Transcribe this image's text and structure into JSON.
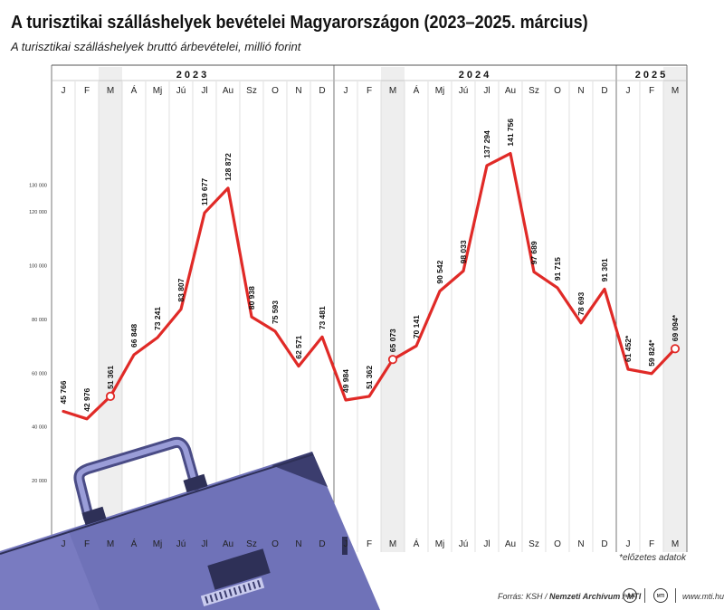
{
  "title": "A turisztikai szálláshelyek bevételei Magyarországon (2023–2025. március)",
  "subtitle": "A turisztikai szálláshelyek bruttó árbevételei, millió forint",
  "footnote": "*előzetes adatok",
  "source": {
    "prefix": "Forrás: ",
    "part1": "KSH",
    "part2": "Nemzeti Archívum",
    "part3": "MTI",
    "logo1": "nava",
    "logo2": "MTI",
    "site": "www.mti.hu"
  },
  "colors": {
    "line": "#e02a27",
    "shade": "#eeeeee",
    "grid": "#d8d8d8",
    "briefcase": "#6f72b8",
    "briefcase_dark": "#3b3d6e"
  },
  "decoration": "briefcase-illustration",
  "chart_data": {
    "type": "line",
    "years": [
      {
        "label": "2023",
        "months": 12
      },
      {
        "label": "2024",
        "months": 12
      },
      {
        "label": "2025",
        "months": 3
      }
    ],
    "categories": [
      "J",
      "F",
      "M",
      "Á",
      "Mj",
      "Jú",
      "Jl",
      "Au",
      "Sz",
      "O",
      "N",
      "D",
      "J",
      "F",
      "M",
      "Á",
      "Mj",
      "Jú",
      "Jl",
      "Au",
      "Sz",
      "O",
      "N",
      "D",
      "J",
      "F",
      "M"
    ],
    "values": [
      45766,
      42976,
      51361,
      66848,
      73241,
      83807,
      119677,
      128872,
      80938,
      75593,
      62571,
      73481,
      49984,
      51362,
      65073,
      70141,
      90542,
      98033,
      137294,
      141756,
      97689,
      91715,
      78693,
      91301,
      61452,
      59824,
      69094
    ],
    "value_labels": [
      "45 766",
      "42 976",
      "51 361",
      "66 848",
      "73 241",
      "83 807",
      "119 677",
      "128 872",
      "80 938",
      "75 593",
      "62 571",
      "73 481",
      "49 984",
      "51 362",
      "65 073",
      "70 141",
      "90 542",
      "98 033",
      "137 294",
      "141 756",
      "97 689",
      "91 715",
      "78 693",
      "91 301",
      "61 452*",
      "59 824*",
      "69 094*"
    ],
    "highlighted_months": [
      2,
      14,
      26
    ],
    "ylim": [
      0,
      140000
    ],
    "y_ticks": [
      20000,
      40000,
      60000,
      80000,
      100000,
      120000,
      130000
    ],
    "y_tick_labels": [
      "20 000",
      "40 000",
      "60 000",
      "80 000",
      "100 000",
      "120 000",
      "130 000"
    ],
    "xlabel": "",
    "ylabel": "",
    "grid": true
  }
}
